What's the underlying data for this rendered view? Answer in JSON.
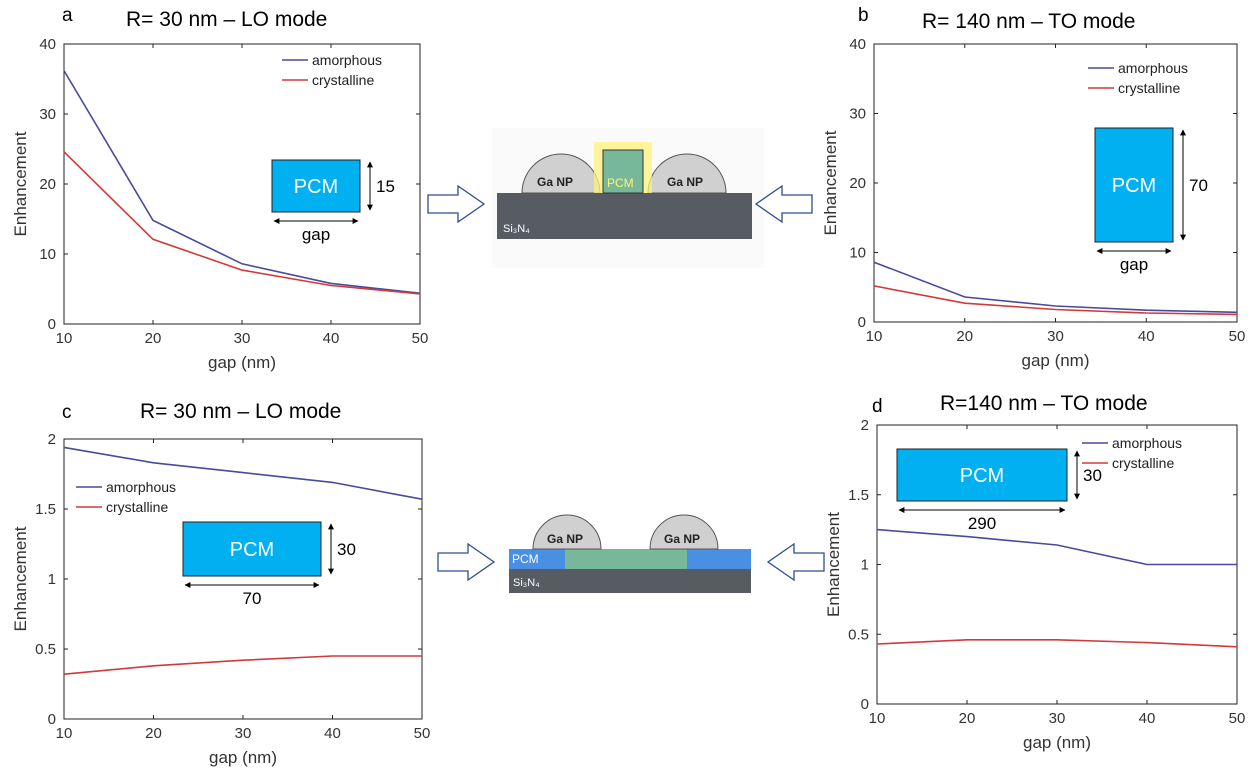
{
  "colors": {
    "amorphous": "#4a4a9c",
    "crystalline": "#d03a3a",
    "pcm": "#00b0f0",
    "substrate": "#575c63",
    "np": "#d0d0d0",
    "pcm_green": "#78b89a",
    "arrow": "#2f4f8f"
  },
  "chart_data": [
    {
      "panel": "a",
      "type": "line",
      "title": "R= 30 nm – LO mode",
      "xlabel": "gap (nm)",
      "ylabel": "Enhancement",
      "x": [
        10,
        20,
        30,
        40,
        50
      ],
      "xlim": [
        10,
        50
      ],
      "ylim": [
        0,
        40
      ],
      "xticks": [
        "10",
        "20",
        "30",
        "40",
        "50"
      ],
      "yticks": [
        "0",
        "10",
        "20",
        "30",
        "40"
      ],
      "legend_position": "top-right",
      "series": [
        {
          "name": "amorphous",
          "values": [
            36.2,
            14.8,
            8.6,
            5.8,
            4.4
          ]
        },
        {
          "name": "crystalline",
          "values": [
            24.6,
            12.1,
            7.7,
            5.5,
            4.3
          ]
        }
      ],
      "inset": {
        "label": "PCM",
        "width_label": "gap",
        "height_label": "15"
      }
    },
    {
      "panel": "b",
      "type": "line",
      "title": "R= 140 nm – TO mode",
      "xlabel": "gap (nm)",
      "ylabel": "Enhancement",
      "x": [
        10,
        20,
        30,
        40,
        50
      ],
      "xlim": [
        10,
        50
      ],
      "ylim": [
        0,
        40
      ],
      "xticks": [
        "10",
        "20",
        "30",
        "40",
        "50"
      ],
      "yticks": [
        "0",
        "10",
        "20",
        "30",
        "40"
      ],
      "legend_position": "top-right",
      "series": [
        {
          "name": "amorphous",
          "values": [
            8.6,
            3.6,
            2.3,
            1.7,
            1.4
          ]
        },
        {
          "name": "crystalline",
          "values": [
            5.2,
            2.7,
            1.8,
            1.3,
            1.1
          ]
        }
      ],
      "inset": {
        "label": "PCM",
        "width_label": "gap",
        "height_label": "70"
      }
    },
    {
      "panel": "c",
      "type": "line",
      "title": "R= 30 nm – LO mode",
      "xlabel": "gap (nm)",
      "ylabel": "Enhancement",
      "x": [
        10,
        20,
        30,
        40,
        50
      ],
      "xlim": [
        10,
        50
      ],
      "ylim": [
        0,
        2
      ],
      "xticks": [
        "10",
        "20",
        "30",
        "40",
        "50"
      ],
      "yticks": [
        "0",
        "0.5",
        "1",
        "1.5",
        "2"
      ],
      "legend_position": "top-left",
      "series": [
        {
          "name": "amorphous",
          "values": [
            1.94,
            1.83,
            1.76,
            1.69,
            1.57
          ]
        },
        {
          "name": "crystalline",
          "values": [
            0.32,
            0.38,
            0.42,
            0.45,
            0.45
          ]
        }
      ],
      "inset": {
        "label": "PCM",
        "width_label": "70",
        "height_label": "30"
      }
    },
    {
      "panel": "d",
      "type": "line",
      "title": "R=140 nm – TO mode",
      "xlabel": "gap (nm)",
      "ylabel": "Enhancement",
      "x": [
        10,
        20,
        30,
        40,
        50
      ],
      "xlim": [
        10,
        50
      ],
      "ylim": [
        0,
        2
      ],
      "xticks": [
        "10",
        "20",
        "30",
        "40",
        "50"
      ],
      "yticks": [
        "0",
        "0.5",
        "1",
        "1.5",
        "2"
      ],
      "legend_position": "top-right",
      "series": [
        {
          "name": "amorphous",
          "values": [
            1.25,
            1.2,
            1.14,
            1.0,
            1.0
          ]
        },
        {
          "name": "crystalline",
          "values": [
            0.43,
            0.46,
            0.46,
            0.44,
            0.41
          ]
        }
      ],
      "inset": {
        "label": "PCM",
        "width_label": "290",
        "height_label": "30"
      }
    }
  ],
  "diagrams": {
    "top": {
      "np_label": "Ga NP",
      "pcm_label": "PCM",
      "substrate_label": "Si₃N₄"
    },
    "bottom": {
      "np_label": "Ga NP",
      "pcm_label": "PCM",
      "substrate_label": "Si₃N₄"
    }
  }
}
